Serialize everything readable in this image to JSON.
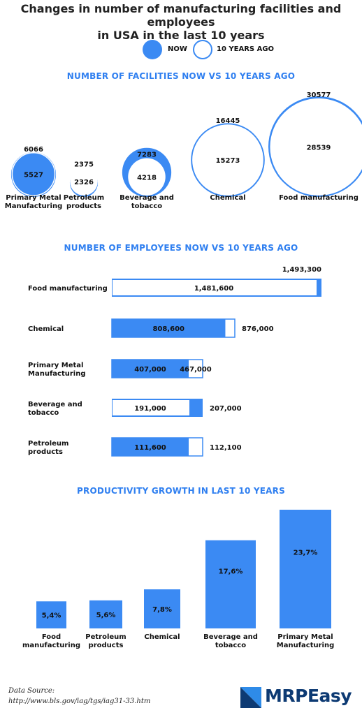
{
  "header": {
    "title_line1": "Changes in number of manufacturing facilities and employees",
    "title_line2": "in USA in the last 10 years"
  },
  "legend": {
    "now_label": "NOW",
    "ago_label": "10 YEARS AGO"
  },
  "colors": {
    "accent": "#3b8af3",
    "text": "#111111",
    "logo_dark": "#0d3a73",
    "logo_light": "#2e8be8"
  },
  "sections": {
    "facilities_title": "NUMBER OF FACILITIES NOW VS 10 YEARS AGO",
    "employees_title": "NUMBER OF EMPLOYEES NOW VS 10 YEARS AGO",
    "productivity_title": "PRODUCTIVITY GROWTH IN LAST 10 YEARS"
  },
  "chart_data": [
    {
      "type": "bubble",
      "title": "NUMBER OF FACILITIES NOW VS 10 YEARS AGO",
      "categories": [
        "Primary Metal Manufacturing",
        "Petroleum products",
        "Beverage and tobacco",
        "Chemical",
        "Food manufacturing"
      ],
      "category_lines": [
        [
          "Primary Metal",
          "Manufacturing"
        ],
        [
          "Petroleum",
          "products"
        ],
        [
          "Beverage and",
          "tobacco"
        ],
        [
          "Chemical"
        ],
        [
          "Food manufacturing"
        ]
      ],
      "series": [
        {
          "name": "NOW",
          "values": [
            5527,
            2326,
            4218,
            15273,
            28539
          ],
          "value_labels": [
            "5527",
            "2326",
            "4218",
            "15273",
            "28539"
          ]
        },
        {
          "name": "10 YEARS AGO",
          "values": [
            6066,
            2375,
            7283,
            16445,
            30577
          ],
          "value_labels": [
            "6066",
            "2375",
            "7283",
            "16445",
            "30577"
          ]
        }
      ]
    },
    {
      "type": "bar",
      "orientation": "horizontal",
      "title": "NUMBER OF EMPLOYEES NOW VS 10 YEARS AGO",
      "categories": [
        "Food manufacturing",
        "Chemical",
        "Primary Metal Manufacturing",
        "Beverage and tobacco",
        "Petroleum products"
      ],
      "category_lines": [
        [
          "Food manufacturing"
        ],
        [
          "Chemical"
        ],
        [
          "Primary Metal",
          "Manufacturing"
        ],
        [
          "Beverage and",
          "tobacco"
        ],
        [
          "Petroleum",
          "products"
        ]
      ],
      "series": [
        {
          "name": "NOW",
          "values": [
            1481600,
            808600,
            407000,
            191000,
            111600
          ],
          "value_labels": [
            "1,481,600",
            "808,600",
            "407,000",
            "191,000",
            "111,600"
          ]
        },
        {
          "name": "10 YEARS AGO",
          "values": [
            1493300,
            876000,
            467000,
            207000,
            112100
          ],
          "value_labels": [
            "1,493,300",
            "876,000",
            "467,000",
            "207,000",
            "112,100"
          ]
        }
      ]
    },
    {
      "type": "bar",
      "title": "PRODUCTIVITY GROWTH IN LAST 10 YEARS",
      "categories": [
        "Food manufacturing",
        "Petroleum products",
        "Chemical",
        "Beverage and tobacco",
        "Primary Metal Manufacturing"
      ],
      "category_lines": [
        [
          "Food",
          "manufacturing"
        ],
        [
          "Petroleum",
          "products"
        ],
        [
          "Chemical"
        ],
        [
          "Beverage and",
          "tobacco"
        ],
        [
          "Primary Metal",
          "Manufacturing"
        ]
      ],
      "values": [
        5.4,
        5.6,
        7.8,
        17.6,
        23.7
      ],
      "value_labels": [
        "5,4%",
        "5,6%",
        "7,8%",
        "17,6%",
        "23,7%"
      ]
    }
  ],
  "footer": {
    "source_label": "Data Source:",
    "source_url": "http://www.bls.gov/iag/tgs/iag31-33.htm",
    "logo_text": "MRPEasy"
  }
}
